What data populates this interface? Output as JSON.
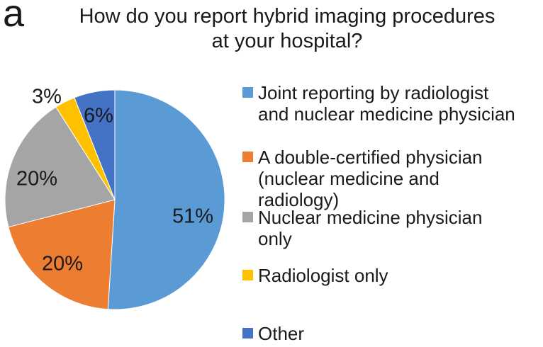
{
  "figure_label": "a",
  "title": "How do you report hybrid imaging procedures\nat your hospital?",
  "chart_data": {
    "type": "pie",
    "title": "How do you report hybrid imaging procedures at your hospital?",
    "categories": [
      "Joint reporting by radiologist and nuclear medicine physician",
      "A double-certified physician (nuclear medicine and radiology)",
      "Nuclear medicine physician only",
      "Radiologist only",
      "Other"
    ],
    "values": [
      51,
      20,
      20,
      3,
      6
    ],
    "unit": "%",
    "slice_labels": [
      "51%",
      "20%",
      "20%",
      "3%",
      "6%"
    ],
    "colors": [
      "#5B9BD5",
      "#ED7D31",
      "#A5A5A5",
      "#FFC000",
      "#4472C4"
    ],
    "start_angle_deg": 0,
    "direction": "clockwise",
    "legend_position": "right",
    "legend": [
      {
        "label": "Joint reporting by radiologist\nand nuclear medicine physician",
        "color": "#5B9BD5"
      },
      {
        "label": "A double-certified physician\n(nuclear medicine and\nradiology)",
        "color": "#ED7D31"
      },
      {
        "label": "Nuclear medicine physician\nonly",
        "color": "#A5A5A5"
      },
      {
        "label": "Radiologist only",
        "color": "#FFC000"
      },
      {
        "label": "Other",
        "color": "#4472C4"
      }
    ]
  }
}
